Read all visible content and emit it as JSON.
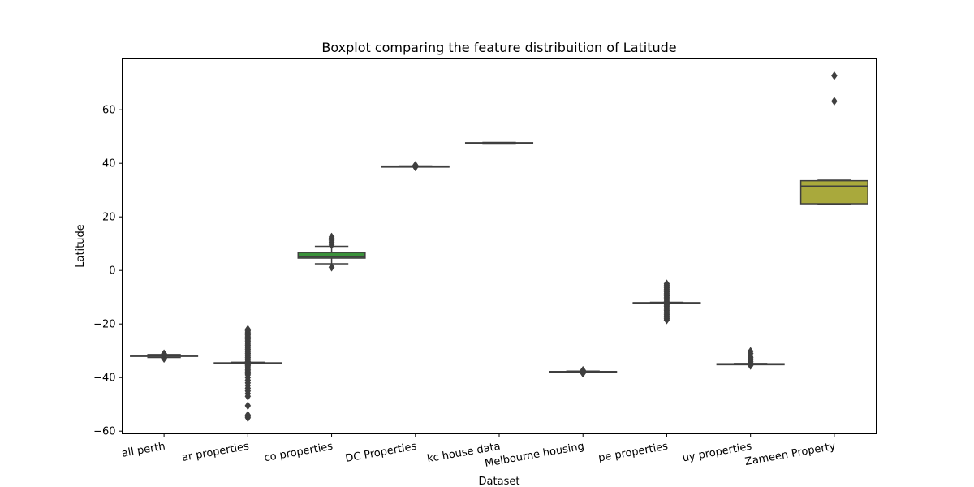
{
  "chart_data": {
    "type": "boxplot",
    "title": "Boxplot comparing the feature distribuition of Latitude",
    "xlabel": "Dataset",
    "ylabel": "Latitude",
    "ylim": [
      -61,
      79
    ],
    "yticks": [
      -60,
      -40,
      -20,
      0,
      20,
      40,
      60
    ],
    "grid": false,
    "legend": "none",
    "series": [
      {
        "name": "all perth",
        "color": "#3274a1",
        "whislo": -32.5,
        "q1": -32.1,
        "med": -31.9,
        "q3": -31.7,
        "whishi": -31.4,
        "fliers": [
          -32.9,
          -32.7,
          -31.3,
          -31.1
        ]
      },
      {
        "name": "ar properties",
        "color": "#e1812c",
        "whislo": -34.8,
        "q1": -34.6,
        "med": -34.6,
        "q3": -34.5,
        "whishi": -34.3,
        "fliers": [
          -55,
          -54.5,
          -54,
          -50.5,
          -47,
          -46,
          -45,
          -44,
          -43,
          -42,
          -41,
          -40,
          -39,
          -38.5,
          -38,
          -37.5,
          -37,
          -36.5,
          -36,
          -35.5,
          -35.2,
          -34.0,
          -33.5,
          -33,
          -32.5,
          -32,
          -31.5,
          -31,
          -30.5,
          -30,
          -29.5,
          -29,
          -28.5,
          -28,
          -27.5,
          -27,
          -26.5,
          -26,
          -25.5,
          -25,
          -24.5,
          -24,
          -23.5,
          -23,
          -22.5,
          -22
        ]
      },
      {
        "name": "co properties",
        "color": "#3a923a",
        "whislo": 2.5,
        "q1": 4.6,
        "med": 5.1,
        "q3": 6.7,
        "whishi": 9.0,
        "fliers": [
          1.2,
          9.5,
          10,
          10.5,
          11,
          11.5,
          12,
          12.5
        ]
      },
      {
        "name": "DC Properties",
        "color": "#c03d3e",
        "whislo": 38.85,
        "q1": 38.9,
        "med": 38.92,
        "q3": 38.95,
        "whishi": 39.0,
        "fliers": [
          38.6,
          38.8,
          39.1,
          39.3
        ]
      },
      {
        "name": "kc house data",
        "color": "#9372b2",
        "whislo": 47.2,
        "q1": 47.45,
        "med": 47.57,
        "q3": 47.68,
        "whishi": 47.78,
        "fliers": []
      },
      {
        "name": "Melbourne housing",
        "color": "#845b53",
        "whislo": -37.95,
        "q1": -37.86,
        "med": -37.81,
        "q3": -37.75,
        "whishi": -37.6,
        "fliers": [
          -38.4,
          -38.3,
          -38.2,
          -38.1,
          -37.5,
          -37.4,
          -37.3
        ]
      },
      {
        "name": "pe properties",
        "color": "#d684bd",
        "whislo": -12.3,
        "q1": -12.15,
        "med": -12.1,
        "q3": -12.05,
        "whishi": -11.9,
        "fliers": [
          -18.5,
          -18,
          -17.5,
          -17,
          -16.5,
          -16,
          -15.5,
          -15,
          -14.5,
          -14,
          -13.5,
          -13,
          -12.6,
          -11.5,
          -11,
          -10.5,
          -10,
          -9.5,
          -9,
          -8.5,
          -8,
          -7.5,
          -7,
          -6.5,
          -6,
          -5.5,
          -5
        ]
      },
      {
        "name": "uy properties",
        "color": "#7f7f7f",
        "whislo": -34.95,
        "q1": -34.9,
        "med": -34.88,
        "q3": -34.85,
        "whishi": -34.75,
        "fliers": [
          -35.5,
          -35.2,
          -34.5,
          -34,
          -33.5,
          -33,
          -32.5,
          -32,
          -31,
          -30.2
        ]
      },
      {
        "name": "Zameen Property",
        "color": "#a9a93c",
        "whislo": 24.7,
        "q1": 24.9,
        "med": 31.5,
        "q3": 33.5,
        "whishi": 33.7,
        "fliers": [
          63.2,
          72.7
        ]
      }
    ]
  }
}
